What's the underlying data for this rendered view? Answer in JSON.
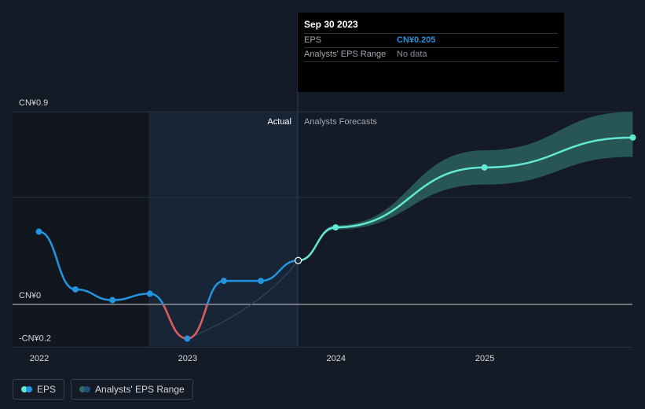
{
  "tooltip": {
    "date": "Sep 30 2023",
    "rows": [
      {
        "label": "EPS",
        "value": "CN¥0.205"
      },
      {
        "label": "Analysts' EPS Range",
        "value": "No data"
      }
    ]
  },
  "legend": {
    "eps_label": "EPS",
    "range_label": "Analysts' EPS Range"
  },
  "colors": {
    "eps_line": "#2394df",
    "negative_line": "#e05a5a",
    "forecast_line": "#62e8d4",
    "forecast_band": "#2e6b66",
    "background": "#151b26"
  },
  "chart_data": {
    "type": "line",
    "y_ticks": [
      {
        "value": 0.9,
        "label": "CN¥0.9"
      },
      {
        "value": 0,
        "label": "CN¥0"
      },
      {
        "value": -0.2,
        "label": "-CN¥0.2"
      }
    ],
    "x_ticks": [
      {
        "date": "2022-01-01",
        "label": "2022"
      },
      {
        "date": "2023-01-01",
        "label": "2023"
      },
      {
        "date": "2024-01-01",
        "label": "2024"
      },
      {
        "date": "2025-01-01",
        "label": "2025"
      }
    ],
    "section_labels": {
      "actual": "Actual",
      "forecast": "Analysts Forecasts"
    },
    "ylim": [
      -0.2,
      0.9
    ],
    "series": [
      {
        "name": "EPS",
        "points": [
          {
            "x": "2021-12-31",
            "y": 0.34
          },
          {
            "x": "2022-03-31",
            "y": 0.07
          },
          {
            "x": "2022-06-30",
            "y": 0.02
          },
          {
            "x": "2022-09-30",
            "y": 0.05
          },
          {
            "x": "2022-12-31",
            "y": -0.16
          },
          {
            "x": "2023-03-31",
            "y": 0.11
          },
          {
            "x": "2023-06-30",
            "y": 0.11
          },
          {
            "x": "2023-09-30",
            "y": 0.205
          }
        ]
      },
      {
        "name": "EPS forecast",
        "points": [
          {
            "x": "2023-09-30",
            "y": 0.205
          },
          {
            "x": "2023-12-31",
            "y": 0.36
          },
          {
            "x": "2024-12-31",
            "y": 0.64
          },
          {
            "x": "2025-12-31",
            "y": 0.78
          }
        ],
        "range_low": [
          0.205,
          0.35,
          0.56,
          0.69
        ],
        "range_high": [
          0.205,
          0.37,
          0.72,
          0.9
        ]
      }
    ]
  }
}
